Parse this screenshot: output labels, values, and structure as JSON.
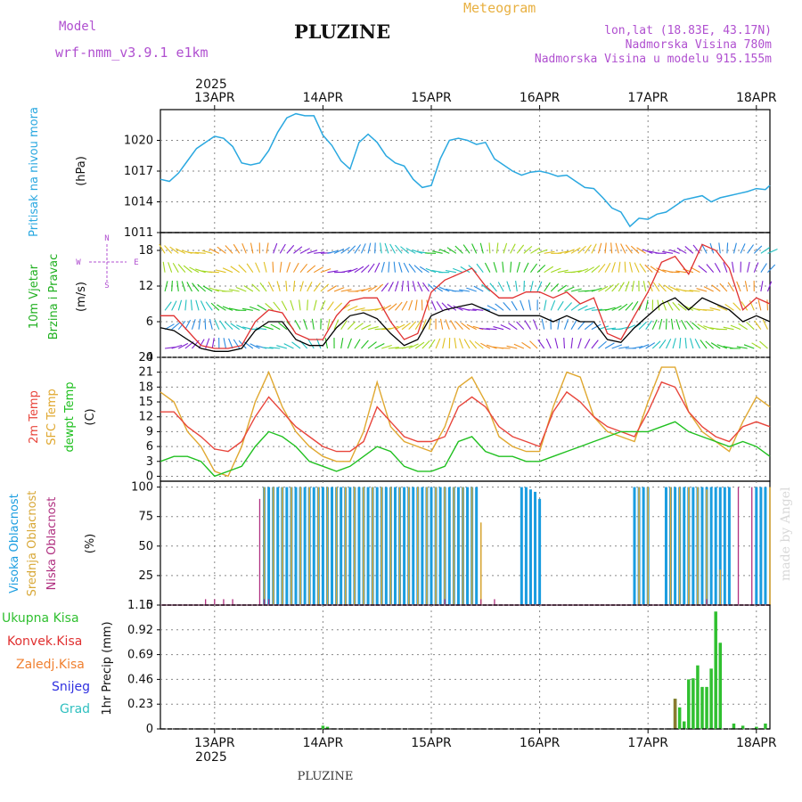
{
  "header": {
    "model_label": "Model",
    "model_name": "wrf-nmm_v3.9.1  e1km",
    "title": "PLUZINE",
    "meteogram_label": "Meteogram",
    "coords": "lon,lat (18.83E, 43.17N)",
    "elevation": "Nadmorska Visina 780m",
    "model_elevation": "Nadmorska Visina u modelu 915.155m",
    "footer_title": "PLUZINE",
    "watermark": "made by Angel"
  },
  "colors": {
    "pressure": "#2aa8e0",
    "temp2m": "#e8463c",
    "sfc": "#e0a830",
    "dewpt": "#20c020",
    "high_cloud": "#1a9de0",
    "mid_cloud": "#d8a838",
    "low_cloud": "#b03080",
    "total_precip": "#30c030",
    "conv_precip": "#e03030",
    "frozen_precip": "#f08030",
    "snow": "#3030e0",
    "hail": "#30c0c0",
    "wind_speed_gust": "#e03030",
    "wind_speed": "#000000",
    "model_purple": "#b050d0",
    "meteogram_orange": "#e8b040"
  },
  "time_axis": {
    "year": "2025",
    "days": [
      "13APR",
      "14APR",
      "15APR",
      "16APR",
      "17APR",
      "18APR"
    ],
    "start_hour": 0,
    "end_hour": 135,
    "day_hours": [
      12,
      36,
      60,
      84,
      108,
      132
    ]
  },
  "panels": {
    "pressure": {
      "labels": [
        "Pritisak na nivou mora",
        "(hPa)"
      ],
      "ticks": [
        "1011",
        "1014",
        "1017",
        "1020"
      ],
      "tick_values": [
        1011,
        1014,
        1017,
        1020
      ],
      "ylim": [
        1011,
        1023
      ]
    },
    "wind": {
      "labels": [
        "10m Vjetar",
        "Brzina i Pravac",
        "(m/s)"
      ],
      "compass": {
        "n": "N",
        "w": "W",
        "e": "E",
        "s": "S"
      },
      "ticks": [
        "0",
        "6",
        "12",
        "18"
      ],
      "tick_values": [
        0,
        6,
        12,
        18
      ],
      "ylim": [
        0,
        21
      ]
    },
    "temperature": {
      "labels": [
        "2m Temp",
        "SFC Temp",
        "dewpt Temp",
        "(C)"
      ],
      "ticks": [
        "0",
        "3",
        "6",
        "9",
        "12",
        "15",
        "18",
        "21",
        "24"
      ],
      "tick_values": [
        0,
        3,
        6,
        9,
        12,
        15,
        18,
        21,
        24
      ],
      "ylim": [
        -1,
        24
      ]
    },
    "clouds": {
      "labels": [
        "Visoka Oblacnost",
        "Srednja Oblacnost",
        "Niska Oblacnost",
        "(%)"
      ],
      "ticks": [
        "0",
        "25",
        "50",
        "75",
        "100"
      ],
      "tick_values": [
        0,
        25,
        50,
        75,
        100
      ],
      "ylim": [
        0,
        105
      ]
    },
    "precip": {
      "labels": [
        "Ukupna Kisa",
        "Konvek.Kisa",
        "Zaledj.Kisa",
        "Snijeg",
        "Grad",
        "1hr Precip (mm)"
      ],
      "ticks": [
        "0",
        "0.23",
        "0.46",
        "0.69",
        "0.92",
        "1.15"
      ],
      "tick_values": [
        0,
        0.23,
        0.46,
        0.69,
        0.92,
        1.15
      ],
      "ylim": [
        0,
        1.15
      ]
    }
  },
  "chart_data": [
    {
      "type": "line",
      "id": "pressure",
      "ylabel": "Pritisak na nivou mora (hPa)",
      "series": [
        {
          "name": "Pritisak na nivou mora",
          "x": [
            0,
            2,
            4,
            6,
            8,
            10,
            12,
            14,
            16,
            18,
            20,
            22,
            24,
            26,
            28,
            30,
            32,
            34,
            36,
            38,
            40,
            42,
            44,
            46,
            48,
            50,
            52,
            54,
            56,
            58,
            60,
            62,
            64,
            66,
            68,
            70,
            72,
            74,
            76,
            78,
            80,
            82,
            84,
            86,
            88,
            90,
            92,
            94,
            96,
            98,
            100,
            102,
            104,
            106,
            108,
            110,
            112,
            114,
            116,
            118,
            120,
            122,
            124,
            126,
            128,
            130,
            132,
            134,
            135
          ],
          "y": [
            1016.2,
            1016.0,
            1016.8,
            1018.0,
            1019.2,
            1019.8,
            1020.4,
            1020.2,
            1019.4,
            1017.8,
            1017.6,
            1017.8,
            1019.0,
            1020.8,
            1022.2,
            1022.6,
            1022.4,
            1022.4,
            1020.5,
            1019.5,
            1018.0,
            1017.2,
            1019.8,
            1020.6,
            1019.8,
            1018.5,
            1017.8,
            1017.5,
            1016.2,
            1015.4,
            1015.6,
            1018.2,
            1020.0,
            1020.2,
            1020.0,
            1019.6,
            1019.8,
            1018.2,
            1017.6,
            1017.0,
            1016.6,
            1016.9,
            1017.0,
            1016.8,
            1016.5,
            1016.6,
            1016.0,
            1015.4,
            1015.3,
            1014.4,
            1013.4,
            1013.0,
            1011.6,
            1012.4,
            1012.3,
            1012.8,
            1013.0,
            1013.6,
            1014.2,
            1014.4,
            1014.6,
            1014.0,
            1014.4,
            1014.6,
            1014.8,
            1015.0,
            1015.3,
            1015.2,
            1015.6
          ]
        }
      ]
    },
    {
      "type": "line",
      "id": "wind_speed",
      "ylabel": "(m/s)",
      "series": [
        {
          "name": "gust",
          "x": [
            0,
            3,
            6,
            9,
            12,
            15,
            18,
            21,
            24,
            27,
            30,
            33,
            36,
            39,
            42,
            45,
            48,
            51,
            54,
            57,
            60,
            63,
            66,
            69,
            72,
            75,
            78,
            81,
            84,
            87,
            90,
            93,
            96,
            99,
            102,
            105,
            108,
            111,
            114,
            117,
            120,
            123,
            126,
            129,
            132,
            135
          ],
          "y": [
            7,
            7,
            4.5,
            2,
            1.5,
            1.5,
            2,
            6,
            8,
            7.5,
            4,
            3,
            3,
            7,
            9.5,
            10,
            10,
            6,
            3,
            4,
            11,
            13,
            14,
            15,
            12,
            10,
            10,
            11,
            11,
            10,
            11,
            9,
            10,
            4,
            3,
            7,
            11,
            16,
            17,
            14,
            19,
            18,
            15,
            8,
            10,
            9
          ]
        },
        {
          "name": "speed",
          "x": [
            0,
            3,
            6,
            9,
            12,
            15,
            18,
            21,
            24,
            27,
            30,
            33,
            36,
            39,
            42,
            45,
            48,
            51,
            54,
            57,
            60,
            63,
            66,
            69,
            72,
            75,
            78,
            81,
            84,
            87,
            90,
            93,
            96,
            99,
            102,
            105,
            108,
            111,
            114,
            117,
            120,
            123,
            126,
            129,
            132,
            135
          ],
          "y": [
            5,
            4.5,
            3,
            1.5,
            1,
            1,
            1.5,
            4.5,
            6,
            6,
            3,
            2,
            2,
            5,
            7,
            7.5,
            6.5,
            4,
            2,
            3,
            7,
            8,
            8.5,
            9,
            8,
            7,
            7,
            7,
            7,
            6,
            7,
            6,
            6,
            3,
            2.5,
            5,
            7,
            9,
            10,
            8,
            10,
            9,
            8,
            6,
            7,
            6
          ]
        }
      ]
    },
    {
      "type": "line",
      "id": "temperature",
      "ylabel": "(C)",
      "series": [
        {
          "name": "2m Temp",
          "x": [
            0,
            3,
            6,
            9,
            12,
            15,
            18,
            21,
            24,
            27,
            30,
            33,
            36,
            39,
            42,
            45,
            48,
            51,
            54,
            57,
            60,
            63,
            66,
            69,
            72,
            75,
            78,
            81,
            84,
            87,
            90,
            93,
            96,
            99,
            102,
            105,
            108,
            111,
            114,
            117,
            120,
            123,
            126,
            129,
            132,
            135
          ],
          "y": [
            13,
            13,
            10,
            8,
            5.5,
            5,
            7,
            12,
            16,
            13,
            10,
            8,
            6,
            5,
            5,
            7,
            14,
            11,
            8,
            7,
            7,
            8,
            14,
            16,
            14,
            10,
            8,
            7,
            6,
            13,
            17,
            15,
            12,
            10,
            9,
            8,
            13,
            19,
            18,
            13,
            10,
            8,
            7,
            10,
            11,
            10
          ]
        },
        {
          "name": "SFC Temp",
          "x": [
            0,
            3,
            6,
            9,
            12,
            15,
            18,
            21,
            24,
            27,
            30,
            33,
            36,
            39,
            42,
            45,
            48,
            51,
            54,
            57,
            60,
            63,
            66,
            69,
            72,
            75,
            78,
            81,
            84,
            87,
            90,
            93,
            96,
            99,
            102,
            105,
            108,
            111,
            114,
            117,
            120,
            123,
            126,
            129,
            132,
            135
          ],
          "y": [
            17,
            15,
            9,
            6,
            1,
            0,
            6,
            15,
            21,
            14,
            9,
            6,
            4,
            3,
            3,
            9,
            19,
            10,
            7,
            6,
            5,
            10,
            18,
            20,
            15,
            8,
            6,
            5,
            5,
            14,
            21,
            20,
            12,
            9,
            8,
            7,
            15,
            22,
            22,
            13,
            9,
            7,
            5,
            11,
            16,
            14
          ]
        },
        {
          "name": "dewpt Temp",
          "x": [
            0,
            3,
            6,
            9,
            12,
            15,
            18,
            21,
            24,
            27,
            30,
            33,
            36,
            39,
            42,
            45,
            48,
            51,
            54,
            57,
            60,
            63,
            66,
            69,
            72,
            75,
            78,
            81,
            84,
            87,
            90,
            93,
            96,
            99,
            102,
            105,
            108,
            111,
            114,
            117,
            120,
            123,
            126,
            129,
            132,
            135
          ],
          "y": [
            3,
            4,
            4,
            3,
            0,
            1,
            2,
            6,
            9,
            8,
            6,
            3,
            2,
            1,
            2,
            4,
            6,
            5,
            2,
            1,
            1,
            2,
            7,
            8,
            5,
            4,
            4,
            3,
            3,
            4,
            5,
            6,
            7,
            8,
            9,
            9,
            9,
            10,
            11,
            9,
            8,
            7,
            6,
            7,
            6,
            4
          ]
        }
      ]
    },
    {
      "type": "bar",
      "id": "clouds",
      "ylabel": "(%)",
      "series": [
        {
          "name": "Visoka Oblacnost",
          "x": [
            23,
            24,
            25,
            26,
            27,
            28,
            29,
            30,
            31,
            32,
            33,
            34,
            35,
            36,
            37,
            38,
            39,
            40,
            41,
            42,
            43,
            44,
            45,
            46,
            47,
            48,
            49,
            50,
            51,
            52,
            53,
            54,
            55,
            56,
            57,
            58,
            59,
            60,
            61,
            62,
            63,
            64,
            65,
            66,
            67,
            68,
            69,
            70,
            80,
            81,
            82,
            83,
            84,
            105,
            106,
            107,
            108,
            112,
            113,
            114,
            115,
            116,
            117,
            118,
            119,
            120,
            121,
            122,
            123,
            124,
            125,
            126,
            132,
            133,
            134
          ],
          "values": [
            100,
            100,
            100,
            100,
            100,
            100,
            100,
            100,
            100,
            100,
            100,
            100,
            100,
            100,
            100,
            100,
            100,
            100,
            100,
            100,
            100,
            100,
            100,
            100,
            100,
            100,
            100,
            100,
            100,
            100,
            100,
            100,
            100,
            100,
            100,
            100,
            100,
            100,
            100,
            100,
            100,
            100,
            100,
            100,
            100,
            100,
            100,
            100,
            100,
            100,
            98,
            96,
            90,
            100,
            100,
            100,
            100,
            100,
            100,
            100,
            100,
            100,
            100,
            100,
            100,
            100,
            100,
            100,
            100,
            100,
            100,
            100,
            100,
            100,
            100
          ]
        },
        {
          "name": "Srednja Oblacnost",
          "x": [
            23,
            25,
            27,
            29,
            31,
            33,
            35,
            37,
            39,
            41,
            43,
            45,
            47,
            49,
            51,
            53,
            55,
            57,
            59,
            61,
            63,
            65,
            67,
            69,
            71,
            106,
            108,
            113,
            115,
            117,
            119,
            121,
            124,
            135
          ],
          "values": [
            100,
            100,
            100,
            100,
            100,
            100,
            100,
            100,
            100,
            100,
            100,
            100,
            100,
            100,
            100,
            100,
            100,
            100,
            100,
            100,
            100,
            100,
            100,
            100,
            70,
            100,
            100,
            100,
            100,
            100,
            100,
            98,
            30,
            100
          ]
        },
        {
          "name": "Niska Oblacnost",
          "x": [
            10,
            12,
            14,
            16,
            22,
            23,
            24,
            63,
            71,
            74,
            121,
            128,
            131
          ],
          "values": [
            5,
            5,
            5,
            5,
            90,
            5,
            5,
            5,
            5,
            5,
            5,
            100,
            100
          ]
        }
      ]
    },
    {
      "type": "bar",
      "id": "precip",
      "ylabel": "1hr Precip (mm)",
      "series": [
        {
          "name": "Ukupna Kisa",
          "x": [
            36,
            37,
            114,
            115,
            116,
            117,
            118,
            119,
            120,
            121,
            122,
            123,
            124,
            127,
            129,
            132,
            134
          ],
          "values": [
            0.03,
            0.02,
            0.28,
            0.2,
            0.07,
            0.46,
            0.47,
            0.59,
            0.39,
            0.39,
            0.56,
            1.09,
            0.8,
            0.05,
            0.03,
            0.02,
            0.05
          ]
        },
        {
          "name": "Zaledj.Kisa",
          "x": [
            114
          ],
          "values": [
            0.28
          ]
        }
      ]
    }
  ]
}
